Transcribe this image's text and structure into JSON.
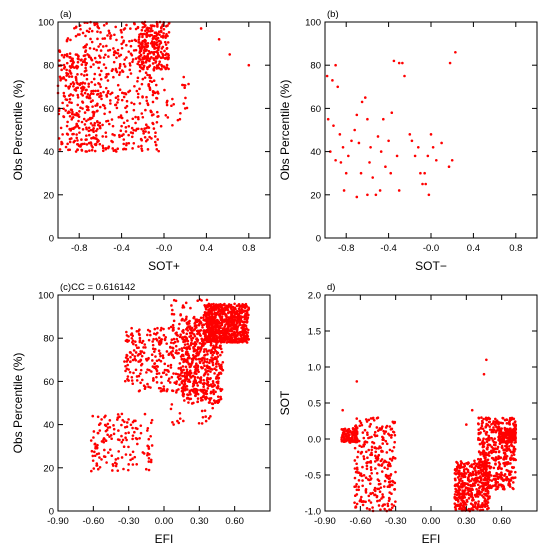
{
  "chart_data": [
    {
      "id": "a",
      "type": "scatter",
      "panel_label": "(a)",
      "xlabel": "SOT+",
      "ylabel": "Obs Percentile (%)",
      "xlim": [
        -1.0,
        1.0
      ],
      "ylim": [
        0,
        100
      ],
      "xticks": [
        -0.8,
        -0.4,
        -0.0,
        0.4,
        0.8
      ],
      "xtick_labels": [
        "-0.8",
        "-0.4",
        "-0.0",
        "0.4",
        "0.8"
      ],
      "yticks": [
        0,
        20,
        40,
        60,
        80,
        100
      ],
      "ytick_labels": [
        "0",
        "20",
        "40",
        "60",
        "80",
        "100"
      ],
      "marker_color": "#ff0000",
      "clusters": [
        {
          "x_min": -1.0,
          "x_max": -0.05,
          "y_min": 40,
          "y_max": 100,
          "n": 520
        },
        {
          "x_min": -0.25,
          "x_max": 0.05,
          "y_min": 78,
          "y_max": 100,
          "n": 220
        },
        {
          "x_min": -0.95,
          "x_max": -0.6,
          "y_min": 40,
          "y_max": 85,
          "n": 180
        },
        {
          "x_min": -0.3,
          "x_max": 0.25,
          "y_min": 48,
          "y_max": 75,
          "n": 40
        }
      ],
      "points": [
        {
          "x": 0.52,
          "y": 92
        },
        {
          "x": 0.62,
          "y": 85
        },
        {
          "x": 0.8,
          "y": 80
        },
        {
          "x": 0.35,
          "y": 97
        },
        {
          "x": 0.2,
          "y": 60
        },
        {
          "x": 0.15,
          "y": 55
        }
      ]
    },
    {
      "id": "b",
      "type": "scatter",
      "panel_label": "(b)",
      "xlabel": "SOT−",
      "ylabel": "Obs Percentile (%)",
      "xlim": [
        -1.0,
        1.0
      ],
      "ylim": [
        0,
        100
      ],
      "xticks": [
        -0.8,
        -0.4,
        -0.0,
        0.4,
        0.8
      ],
      "xtick_labels": [
        "-0.8",
        "-0.4",
        "-0.0",
        "0.4",
        "0.8"
      ],
      "yticks": [
        0,
        20,
        40,
        60,
        80,
        100
      ],
      "ytick_labels": [
        "0",
        "20",
        "40",
        "60",
        "80",
        "100"
      ],
      "marker_color": "#ff0000",
      "points": [
        {
          "x": -0.98,
          "y": 75
        },
        {
          "x": -0.93,
          "y": 73
        },
        {
          "x": -0.9,
          "y": 80
        },
        {
          "x": -0.88,
          "y": 70
        },
        {
          "x": -0.97,
          "y": 55
        },
        {
          "x": -0.92,
          "y": 52
        },
        {
          "x": -0.86,
          "y": 48
        },
        {
          "x": -0.83,
          "y": 42
        },
        {
          "x": -0.95,
          "y": 40
        },
        {
          "x": -0.9,
          "y": 36
        },
        {
          "x": -0.8,
          "y": 30
        },
        {
          "x": -0.78,
          "y": 38
        },
        {
          "x": -0.75,
          "y": 45
        },
        {
          "x": -0.72,
          "y": 50
        },
        {
          "x": -0.7,
          "y": 57
        },
        {
          "x": -0.68,
          "y": 44
        },
        {
          "x": -0.65,
          "y": 63
        },
        {
          "x": -0.62,
          "y": 65
        },
        {
          "x": -0.6,
          "y": 55
        },
        {
          "x": -0.58,
          "y": 35
        },
        {
          "x": -0.55,
          "y": 28
        },
        {
          "x": -0.52,
          "y": 20
        },
        {
          "x": -0.5,
          "y": 47
        },
        {
          "x": -0.47,
          "y": 40
        },
        {
          "x": -0.45,
          "y": 55
        },
        {
          "x": -0.43,
          "y": 33
        },
        {
          "x": -0.4,
          "y": 45
        },
        {
          "x": -0.38,
          "y": 30
        },
        {
          "x": -0.35,
          "y": 82
        },
        {
          "x": -0.3,
          "y": 81
        },
        {
          "x": -0.27,
          "y": 81
        },
        {
          "x": -0.25,
          "y": 75
        },
        {
          "x": -0.3,
          "y": 22
        },
        {
          "x": -0.32,
          "y": 38
        },
        {
          "x": -0.2,
          "y": 48
        },
        {
          "x": -0.18,
          "y": 45
        },
        {
          "x": -0.15,
          "y": 38
        },
        {
          "x": -0.12,
          "y": 42
        },
        {
          "x": -0.1,
          "y": 30
        },
        {
          "x": -0.08,
          "y": 25
        },
        {
          "x": -0.05,
          "y": 25
        },
        {
          "x": -0.03,
          "y": 38
        },
        {
          "x": 0.0,
          "y": 48
        },
        {
          "x": 0.02,
          "y": 42
        },
        {
          "x": 0.05,
          "y": 36
        },
        {
          "x": 0.1,
          "y": 44
        },
        {
          "x": -0.02,
          "y": 20
        },
        {
          "x": -0.06,
          "y": 30
        },
        {
          "x": 0.18,
          "y": 81
        },
        {
          "x": 0.23,
          "y": 86
        },
        {
          "x": 0.2,
          "y": 36
        },
        {
          "x": 0.17,
          "y": 33
        },
        {
          "x": -0.6,
          "y": 20
        },
        {
          "x": -0.7,
          "y": 19
        },
        {
          "x": -0.82,
          "y": 22
        },
        {
          "x": -0.48,
          "y": 22
        },
        {
          "x": -0.85,
          "y": 35
        },
        {
          "x": -0.66,
          "y": 30
        },
        {
          "x": -0.57,
          "y": 42
        },
        {
          "x": -0.37,
          "y": 58
        }
      ]
    },
    {
      "id": "c",
      "type": "scatter",
      "panel_label": "(c)CC = 0.616142",
      "xlabel": "EFI",
      "ylabel": "Obs Percentile (%)",
      "xlim": [
        -0.9,
        0.9
      ],
      "ylim": [
        0,
        100
      ],
      "xticks": [
        -0.9,
        -0.6,
        -0.3,
        0.0,
        0.3,
        0.6
      ],
      "xtick_labels": [
        "-0.90",
        "-0.60",
        "-0.30",
        "0.00",
        "0.30",
        "0.60"
      ],
      "yticks": [
        0,
        20,
        40,
        60,
        80,
        100
      ],
      "ytick_labels": [
        "0",
        "20",
        "40",
        "60",
        "80",
        "100"
      ],
      "marker_color": "#ff0000",
      "clusters": [
        {
          "x_min": 0.35,
          "x_max": 0.72,
          "y_min": 78,
          "y_max": 96,
          "n": 700
        },
        {
          "x_min": 0.15,
          "x_max": 0.5,
          "y_min": 50,
          "y_max": 90,
          "n": 520
        },
        {
          "x_min": -0.35,
          "x_max": 0.2,
          "y_min": 55,
          "y_max": 85,
          "n": 260
        },
        {
          "x_min": -0.62,
          "x_max": -0.1,
          "y_min": 18,
          "y_max": 45,
          "n": 150
        },
        {
          "x_min": 0.05,
          "x_max": 0.45,
          "y_min": 40,
          "y_max": 100,
          "n": 150
        }
      ],
      "points": []
    },
    {
      "id": "d",
      "type": "scatter",
      "panel_label": "d)",
      "panel_label_bottom": "(d)",
      "xlabel": "EFI",
      "ylabel": "SOT",
      "xlim": [
        -0.9,
        0.9
      ],
      "ylim": [
        -1.0,
        2.0
      ],
      "xticks": [
        -0.9,
        -0.6,
        -0.3,
        0.0,
        0.3,
        0.6
      ],
      "xtick_labels": [
        "-0.90",
        "-0.60",
        "-0.30",
        "0.00",
        "0.30",
        "0.60"
      ],
      "yticks": [
        -1.0,
        -0.5,
        0.0,
        0.5,
        1.0,
        1.5,
        2.0
      ],
      "ytick_labels": [
        "-1.0",
        "-0.5",
        "0.0",
        "0.5",
        "1.0",
        "1.5",
        "2.0"
      ],
      "marker_color": "#ff0000",
      "clusters": [
        {
          "x_min": -0.76,
          "x_max": -0.62,
          "y_min": -0.05,
          "y_max": 0.15,
          "n": 120
        },
        {
          "x_min": -0.65,
          "x_max": -0.3,
          "y_min": -1.0,
          "y_max": 0.3,
          "n": 280
        },
        {
          "x_min": 0.2,
          "x_max": 0.5,
          "y_min": -1.0,
          "y_max": -0.3,
          "n": 400
        },
        {
          "x_min": 0.4,
          "x_max": 0.72,
          "y_min": -0.7,
          "y_max": 0.3,
          "n": 450
        },
        {
          "x_min": 0.58,
          "x_max": 0.72,
          "y_min": -0.05,
          "y_max": 0.15,
          "n": 150
        }
      ],
      "points": [
        {
          "x": -0.63,
          "y": 0.8
        },
        {
          "x": 0.47,
          "y": 1.1
        },
        {
          "x": 0.45,
          "y": 0.9
        },
        {
          "x": -0.75,
          "y": 0.4
        },
        {
          "x": 0.3,
          "y": 0.2
        },
        {
          "x": 0.35,
          "y": 0.4
        }
      ]
    }
  ]
}
